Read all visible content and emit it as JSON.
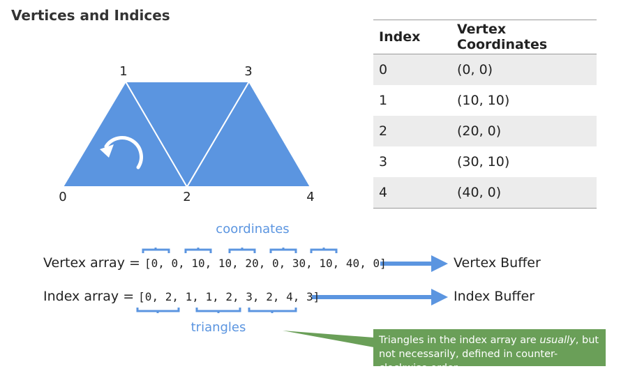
{
  "title": "Vertices and Indices",
  "vertex_labels": [
    "0",
    "1",
    "2",
    "3",
    "4"
  ],
  "colors": {
    "shape": "#5b95e0",
    "note": "#6a9f58",
    "row_shade": "#ececec"
  },
  "table": {
    "headers": [
      "Index",
      "Vertex Coordinates"
    ],
    "rows": [
      [
        "0",
        "(0, 0)"
      ],
      [
        "1",
        "(10, 10)"
      ],
      [
        "2",
        "(20, 0)"
      ],
      [
        "3",
        "(30, 10)"
      ],
      [
        "4",
        "(40, 0)"
      ]
    ]
  },
  "vertex_array": {
    "label": "Vertex array = ",
    "value": "[0, 0, 10, 10, 20, 0, 30, 10, 40, 0]",
    "target": "Vertex Buffer",
    "group_label": "coordinates"
  },
  "index_array": {
    "label": "Index array = ",
    "value": "[0, 2, 1, 1, 2, 3, 2, 4, 3]",
    "target": "Index Buffer",
    "group_label": "triangles"
  },
  "note": {
    "before": "Triangles in the index array are ",
    "emphasis": "usually",
    "after": ", but not necessarily, defined in counter-clockwise order."
  },
  "icons": {
    "winding": "counter-clockwise-arrow-icon"
  }
}
